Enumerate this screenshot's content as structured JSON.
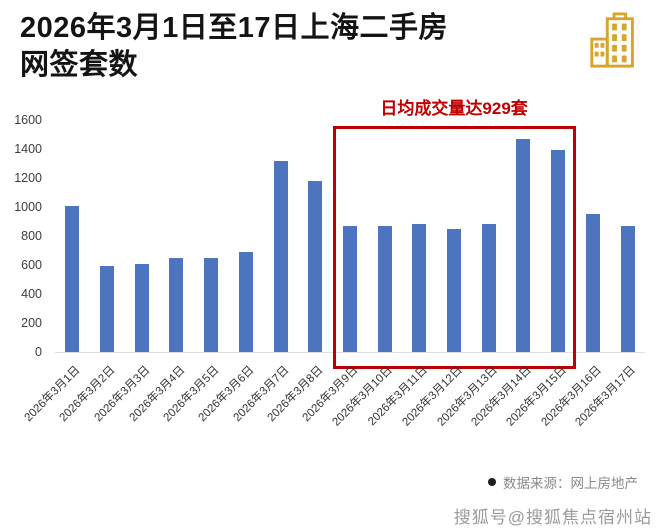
{
  "page": {
    "title_line1": "2026年3月1日至17日上海二手房",
    "title_line2": "网签套数",
    "source": "数据来源：网上房地产",
    "watermark": "搜狐号@搜狐焦点宿州站"
  },
  "colors": {
    "bar": "#4d74bf",
    "accent_red": "#c00000",
    "icon_gold": "#d8a52c",
    "title_text": "#141414"
  },
  "chart_data": {
    "type": "bar",
    "title": "2026年3月1日至17日上海二手房网签套数",
    "categories": [
      "2026年3月1日",
      "2026年3月2日",
      "2026年3月3日",
      "2026年3月4日",
      "2026年3月5日",
      "2026年3月6日",
      "2026年3月7日",
      "2026年3月8日",
      "2026年3月9日",
      "2026年3月10日",
      "2026年3月11日",
      "2026年3月12日",
      "2026年3月13日",
      "2026年3月14日",
      "2026年3月15日",
      "2026年3月16日",
      "2026年3月17日"
    ],
    "values": [
      1010,
      590,
      610,
      650,
      650,
      690,
      1320,
      1180,
      870,
      870,
      880,
      850,
      880,
      1470,
      1390,
      950,
      870
    ],
    "xlabel": "",
    "ylabel": "",
    "ylim": [
      0,
      1600
    ],
    "yticks": [
      0,
      200,
      400,
      600,
      800,
      1000,
      1200,
      1400,
      1600
    ],
    "grid": false,
    "legend": null,
    "highlight": {
      "start": "2026年3月9日",
      "end": "2026年3月15日",
      "annotation": "日均成交量达929套"
    }
  }
}
